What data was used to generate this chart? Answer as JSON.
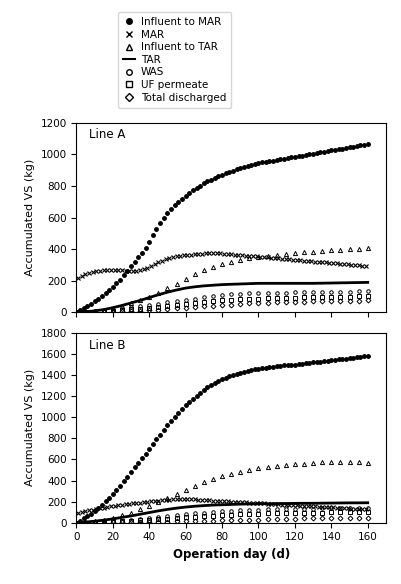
{
  "lineA": {
    "title": "Line A",
    "ylim": [
      0,
      1200
    ],
    "yticks": [
      0,
      200,
      400,
      600,
      800,
      1000,
      1200
    ],
    "influent_to_MAR": {
      "x": [
        0,
        2,
        4,
        6,
        8,
        10,
        12,
        14,
        16,
        18,
        20,
        22,
        24,
        26,
        28,
        30,
        32,
        34,
        36,
        38,
        40,
        42,
        44,
        46,
        48,
        50,
        52,
        54,
        56,
        58,
        60,
        62,
        64,
        66,
        68,
        70,
        72,
        74,
        76,
        78,
        80,
        82,
        84,
        86,
        88,
        90,
        92,
        94,
        96,
        98,
        100,
        102,
        104,
        106,
        108,
        110,
        112,
        114,
        116,
        118,
        120,
        122,
        124,
        126,
        128,
        130,
        132,
        134,
        136,
        138,
        140,
        142,
        144,
        146,
        148,
        150,
        152,
        154,
        156,
        158,
        160
      ],
      "y": [
        0,
        14,
        28,
        42,
        56,
        72,
        88,
        106,
        124,
        142,
        162,
        184,
        208,
        234,
        262,
        292,
        320,
        348,
        376,
        410,
        448,
        490,
        530,
        566,
        598,
        628,
        654,
        678,
        700,
        720,
        738,
        756,
        772,
        788,
        802,
        816,
        828,
        840,
        850,
        860,
        870,
        879,
        888,
        896,
        904,
        912,
        918,
        924,
        930,
        936,
        942,
        948,
        952,
        956,
        960,
        964,
        968,
        972,
        976,
        980,
        984,
        988,
        992,
        996,
        1000,
        1004,
        1008,
        1012,
        1016,
        1020,
        1024,
        1028,
        1032,
        1036,
        1040,
        1044,
        1048,
        1052,
        1056,
        1060,
        1064
      ]
    },
    "MAR": {
      "x": [
        1,
        3,
        5,
        7,
        9,
        11,
        13,
        15,
        17,
        19,
        21,
        23,
        25,
        27,
        29,
        31,
        33,
        35,
        37,
        39,
        41,
        43,
        45,
        47,
        49,
        51,
        53,
        55,
        57,
        59,
        61,
        63,
        65,
        67,
        69,
        71,
        73,
        75,
        77,
        79,
        81,
        83,
        85,
        87,
        89,
        91,
        93,
        95,
        97,
        99,
        101,
        103,
        105,
        107,
        109,
        111,
        113,
        115,
        117,
        119,
        121,
        123,
        125,
        127,
        129,
        131,
        133,
        135,
        137,
        139,
        141,
        143,
        145,
        147,
        149,
        151,
        153,
        155,
        157,
        159
      ],
      "y": [
        220,
        232,
        244,
        252,
        258,
        262,
        264,
        266,
        268,
        270,
        270,
        268,
        266,
        264,
        262,
        262,
        264,
        268,
        274,
        282,
        292,
        304,
        316,
        328,
        338,
        346,
        352,
        356,
        360,
        362,
        364,
        366,
        368,
        370,
        372,
        374,
        376,
        376,
        376,
        374,
        372,
        370,
        368,
        366,
        364,
        362,
        360,
        358,
        356,
        354,
        352,
        350,
        348,
        346,
        344,
        342,
        340,
        338,
        336,
        334,
        332,
        330,
        328,
        326,
        324,
        322,
        320,
        318,
        316,
        314,
        312,
        310,
        308,
        306,
        304,
        302,
        300,
        298,
        296,
        294
      ]
    },
    "influent_to_TAR": {
      "x": [
        0,
        5,
        10,
        15,
        20,
        25,
        30,
        35,
        40,
        45,
        50,
        55,
        60,
        65,
        70,
        75,
        80,
        85,
        90,
        95,
        100,
        105,
        110,
        115,
        120,
        125,
        130,
        135,
        140,
        145,
        150,
        155,
        160
      ],
      "y": [
        0,
        4,
        10,
        18,
        28,
        42,
        58,
        78,
        100,
        126,
        154,
        182,
        212,
        242,
        268,
        290,
        308,
        322,
        334,
        344,
        352,
        360,
        366,
        372,
        376,
        380,
        384,
        388,
        392,
        396,
        400,
        404,
        408
      ]
    },
    "TAR": {
      "x": [
        0,
        5,
        10,
        15,
        20,
        25,
        30,
        35,
        40,
        45,
        50,
        55,
        60,
        65,
        70,
        75,
        80,
        85,
        90,
        95,
        100,
        105,
        110,
        115,
        120,
        125,
        130,
        135,
        140,
        145,
        150,
        155,
        160
      ],
      "y": [
        0,
        4,
        10,
        18,
        30,
        44,
        60,
        76,
        94,
        112,
        128,
        142,
        154,
        162,
        168,
        172,
        176,
        178,
        180,
        182,
        184,
        184,
        184,
        184,
        184,
        184,
        184,
        185,
        186,
        187,
        188,
        189,
        190
      ]
    },
    "WAS": {
      "x": [
        0,
        5,
        10,
        15,
        20,
        25,
        30,
        35,
        40,
        45,
        50,
        55,
        60,
        65,
        70,
        75,
        80,
        85,
        90,
        95,
        100,
        105,
        110,
        115,
        120,
        125,
        130,
        135,
        140,
        145,
        150,
        155,
        160
      ],
      "y": [
        0,
        2,
        6,
        11,
        17,
        24,
        32,
        40,
        48,
        56,
        64,
        72,
        80,
        88,
        96,
        104,
        110,
        114,
        118,
        120,
        122,
        124,
        125,
        126,
        127,
        128,
        129,
        130,
        130,
        131,
        132,
        133,
        134
      ]
    },
    "UF_permeate": {
      "x": [
        0,
        5,
        10,
        15,
        20,
        25,
        30,
        35,
        40,
        45,
        50,
        55,
        60,
        65,
        70,
        75,
        80,
        85,
        90,
        95,
        100,
        105,
        110,
        115,
        120,
        125,
        130,
        135,
        140,
        145,
        150,
        155,
        160
      ],
      "y": [
        0,
        1,
        3,
        6,
        10,
        14,
        19,
        24,
        30,
        36,
        42,
        48,
        54,
        60,
        66,
        72,
        76,
        80,
        83,
        86,
        88,
        90,
        92,
        93,
        94,
        95,
        96,
        97,
        98,
        99,
        100,
        101,
        102
      ]
    },
    "total_discharged": {
      "x": [
        0,
        5,
        10,
        15,
        20,
        25,
        30,
        35,
        40,
        45,
        50,
        55,
        60,
        65,
        70,
        75,
        80,
        85,
        90,
        95,
        100,
        105,
        110,
        115,
        120,
        125,
        130,
        135,
        140,
        145,
        150,
        155,
        160
      ],
      "y": [
        0,
        1,
        2,
        3,
        5,
        7,
        9,
        12,
        15,
        18,
        22,
        26,
        30,
        34,
        38,
        42,
        46,
        50,
        54,
        57,
        60,
        62,
        64,
        66,
        68,
        69,
        70,
        71,
        72,
        73,
        74,
        75,
        76
      ]
    }
  },
  "lineB": {
    "title": "Line B",
    "ylim": [
      0,
      1800
    ],
    "yticks": [
      0,
      200,
      400,
      600,
      800,
      1000,
      1200,
      1400,
      1600,
      1800
    ],
    "influent_to_MAR": {
      "x": [
        0,
        2,
        4,
        6,
        8,
        10,
        12,
        14,
        16,
        18,
        20,
        22,
        24,
        26,
        28,
        30,
        32,
        34,
        36,
        38,
        40,
        42,
        44,
        46,
        48,
        50,
        52,
        54,
        56,
        58,
        60,
        62,
        64,
        66,
        68,
        70,
        72,
        74,
        76,
        78,
        80,
        82,
        84,
        86,
        88,
        90,
        92,
        94,
        96,
        98,
        100,
        102,
        104,
        106,
        108,
        110,
        112,
        114,
        116,
        118,
        120,
        122,
        124,
        126,
        128,
        130,
        132,
        134,
        136,
        138,
        140,
        142,
        144,
        146,
        148,
        150,
        152,
        154,
        156,
        158,
        160
      ],
      "y": [
        0,
        20,
        40,
        62,
        86,
        112,
        140,
        170,
        202,
        236,
        272,
        310,
        350,
        392,
        436,
        480,
        524,
        568,
        612,
        656,
        700,
        744,
        790,
        836,
        880,
        924,
        966,
        1006,
        1044,
        1080,
        1114,
        1146,
        1176,
        1206,
        1234,
        1260,
        1284,
        1306,
        1326,
        1344,
        1360,
        1374,
        1388,
        1400,
        1412,
        1422,
        1432,
        1440,
        1448,
        1454,
        1460,
        1466,
        1470,
        1476,
        1481,
        1485,
        1488,
        1491,
        1494,
        1497,
        1500,
        1504,
        1508,
        1512,
        1516,
        1520,
        1524,
        1528,
        1532,
        1536,
        1540,
        1544,
        1548,
        1552,
        1556,
        1560,
        1564,
        1568,
        1572,
        1576,
        1580
      ]
    },
    "MAR": {
      "x": [
        1,
        3,
        5,
        7,
        9,
        11,
        13,
        15,
        17,
        19,
        21,
        23,
        25,
        27,
        29,
        31,
        33,
        35,
        37,
        39,
        41,
        43,
        45,
        47,
        49,
        51,
        53,
        55,
        57,
        59,
        61,
        63,
        65,
        67,
        69,
        71,
        73,
        75,
        77,
        79,
        81,
        83,
        85,
        87,
        89,
        91,
        93,
        95,
        97,
        99,
        101,
        103,
        105,
        107,
        109,
        111,
        113,
        115,
        117,
        119,
        121,
        123,
        125,
        127,
        129,
        131,
        133,
        135,
        137,
        139,
        141,
        143,
        145,
        147,
        149,
        151,
        153,
        155,
        157,
        159
      ],
      "y": [
        90,
        100,
        110,
        118,
        124,
        130,
        136,
        142,
        148,
        154,
        160,
        165,
        170,
        174,
        178,
        182,
        186,
        190,
        194,
        198,
        202,
        206,
        210,
        214,
        216,
        218,
        220,
        222,
        224,
        225,
        224,
        222,
        220,
        218,
        216,
        214,
        212,
        210,
        208,
        206,
        204,
        202,
        200,
        198,
        196,
        194,
        192,
        190,
        188,
        186,
        184,
        182,
        180,
        178,
        176,
        174,
        172,
        170,
        168,
        166,
        164,
        162,
        160,
        158,
        156,
        154,
        152,
        150,
        148,
        146,
        144,
        142,
        140,
        138,
        136,
        134,
        132,
        130,
        128,
        126
      ]
    },
    "influent_to_TAR": {
      "x": [
        0,
        5,
        10,
        15,
        20,
        25,
        30,
        35,
        40,
        45,
        50,
        55,
        60,
        65,
        70,
        75,
        80,
        85,
        90,
        95,
        100,
        105,
        110,
        115,
        120,
        125,
        130,
        135,
        140,
        145,
        150,
        155,
        160
      ],
      "y": [
        0,
        6,
        16,
        30,
        48,
        70,
        96,
        126,
        160,
        196,
        234,
        274,
        312,
        350,
        386,
        418,
        444,
        466,
        484,
        500,
        514,
        526,
        536,
        546,
        554,
        560,
        566,
        572,
        578,
        580,
        578,
        574,
        570
      ]
    },
    "TAR": {
      "x": [
        0,
        5,
        10,
        15,
        20,
        25,
        30,
        35,
        40,
        45,
        50,
        55,
        60,
        65,
        70,
        75,
        80,
        85,
        90,
        95,
        100,
        105,
        110,
        115,
        120,
        125,
        130,
        135,
        140,
        145,
        150,
        155,
        160
      ],
      "y": [
        0,
        6,
        14,
        24,
        36,
        50,
        64,
        80,
        96,
        112,
        126,
        138,
        148,
        156,
        162,
        167,
        170,
        173,
        176,
        178,
        179,
        180,
        181,
        182,
        183,
        184,
        184,
        185,
        186,
        187,
        188,
        188,
        189
      ]
    },
    "WAS": {
      "x": [
        0,
        5,
        10,
        15,
        20,
        25,
        30,
        35,
        40,
        45,
        50,
        55,
        60,
        65,
        70,
        75,
        80,
        85,
        90,
        95,
        100,
        105,
        110,
        115,
        120,
        125,
        130,
        135,
        140,
        145,
        150,
        155,
        160
      ],
      "y": [
        0,
        2,
        5,
        9,
        14,
        20,
        27,
        35,
        44,
        53,
        62,
        72,
        80,
        88,
        96,
        104,
        110,
        114,
        118,
        121,
        124,
        126,
        128,
        130,
        132,
        133,
        134,
        135,
        136,
        137,
        138,
        139,
        140
      ]
    },
    "UF_permeate": {
      "x": [
        0,
        5,
        10,
        15,
        20,
        25,
        30,
        35,
        40,
        45,
        50,
        55,
        60,
        65,
        70,
        75,
        80,
        85,
        90,
        95,
        100,
        105,
        110,
        115,
        120,
        125,
        130,
        135,
        140,
        145,
        150,
        155,
        160
      ],
      "y": [
        0,
        1,
        3,
        5,
        8,
        12,
        16,
        21,
        27,
        33,
        39,
        45,
        51,
        57,
        63,
        68,
        73,
        77,
        80,
        83,
        86,
        88,
        90,
        92,
        93,
        94,
        95,
        96,
        97,
        98,
        99,
        100,
        101
      ]
    },
    "total_discharged": {
      "x": [
        0,
        5,
        10,
        15,
        20,
        25,
        30,
        35,
        40,
        45,
        50,
        55,
        60,
        65,
        70,
        75,
        80,
        85,
        90,
        95,
        100,
        105,
        110,
        115,
        120,
        125,
        130,
        135,
        140,
        145,
        150,
        155,
        160
      ],
      "y": [
        0,
        0,
        1,
        1,
        2,
        3,
        4,
        5,
        6,
        8,
        10,
        12,
        14,
        16,
        18,
        20,
        22,
        24,
        26,
        28,
        30,
        32,
        34,
        36,
        38,
        40,
        42,
        43,
        44,
        45,
        46,
        47,
        48
      ]
    }
  },
  "xlabel": "Operation day (d)",
  "ylabel": "Accumulated VS (kg)",
  "xlim": [
    0,
    170
  ],
  "xticks": [
    0,
    20,
    40,
    60,
    80,
    100,
    120,
    140,
    160
  ]
}
